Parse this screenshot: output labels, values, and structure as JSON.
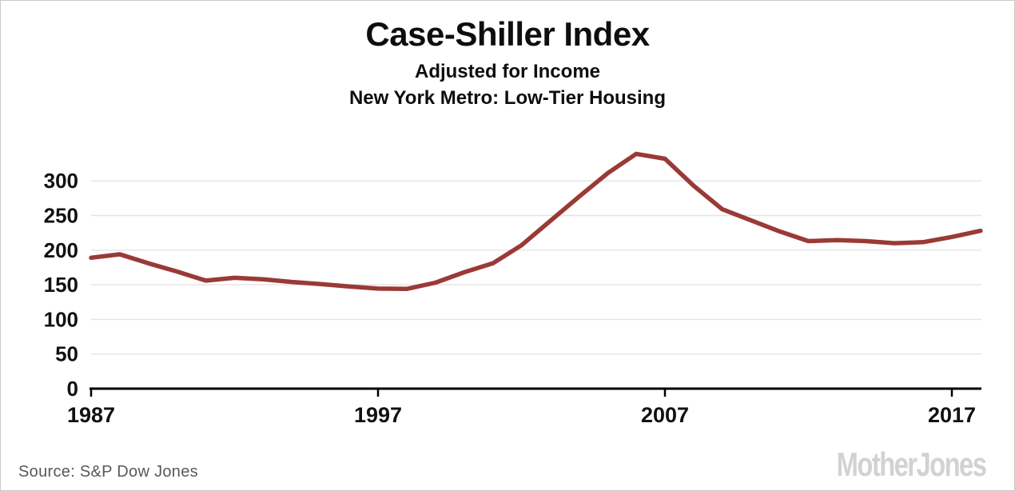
{
  "header": {
    "title": "Case-Shiller Index",
    "subtitle_line1": "Adjusted for Income",
    "subtitle_line2": "New York Metro: Low-Tier Housing"
  },
  "footer": {
    "source_label": "Source: S&P Dow Jones",
    "brand_logo": "MotherJones"
  },
  "colors": {
    "line": "#9a3a36",
    "grid": "#e4e4e4",
    "axis": "#000000",
    "tick_label": "#111111",
    "source_text": "#595959",
    "logo": "#d2d2d2",
    "border": "#c9c9c9"
  },
  "chart_data": {
    "type": "line",
    "title": "Case-Shiller Index",
    "subtitle": [
      "Adjusted for Income",
      "New York Metro: Low-Tier Housing"
    ],
    "source": "Source: S&P Dow Jones",
    "legend": "none",
    "grid": "horizontal-only",
    "xlim": [
      1987,
      2018.1
    ],
    "ylim": [
      0,
      350
    ],
    "x_ticks": [
      1987,
      1997,
      2007,
      2017
    ],
    "y_ticks": [
      0,
      50,
      100,
      150,
      200,
      250,
      300
    ],
    "x": [
      1987,
      1988,
      1989,
      1990,
      1991,
      1992,
      1993,
      1994,
      1995,
      1996,
      1997,
      1998,
      1999,
      2000,
      2001,
      2002,
      2003,
      2004,
      2005,
      2006,
      2007,
      2008,
      2009,
      2010,
      2011,
      2012,
      2013,
      2014,
      2015,
      2016,
      2017,
      2018
    ],
    "series": [
      {
        "name": "Case-Shiller index adjusted for income, New York metro low-tier housing",
        "color": "#9a3a36",
        "values": [
          189,
          194,
          181,
          169,
          156,
          160,
          158,
          154,
          151,
          147.5,
          144.5,
          144,
          153,
          168,
          181,
          207,
          242,
          277,
          311,
          339,
          332,
          293,
          259,
          243,
          227,
          213,
          214.5,
          213,
          210,
          211.5,
          219,
          228
        ]
      }
    ]
  }
}
